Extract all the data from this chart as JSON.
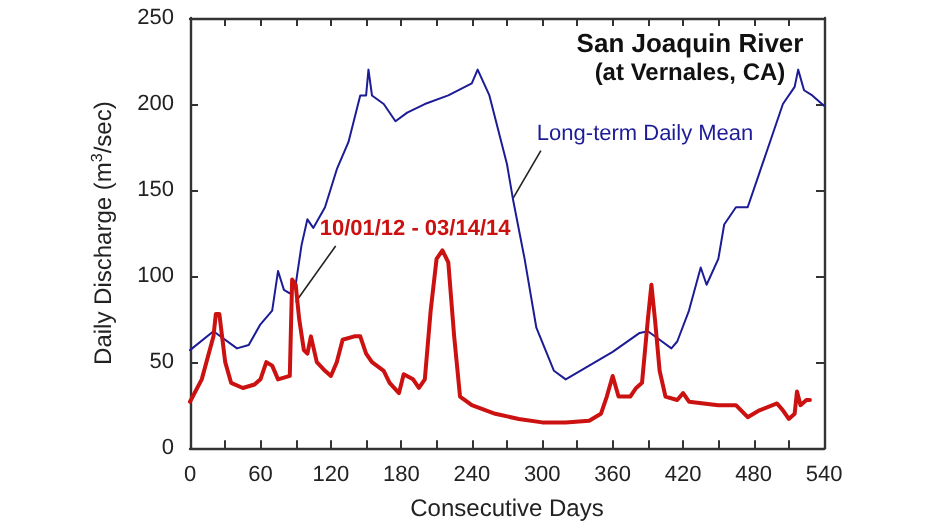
{
  "chart_data": {
    "type": "line",
    "title": "San Joaquin River",
    "subtitle": "(at Vernales, CA)",
    "xlabel": "Consecutive Days",
    "ylabel": "Daily Discharge (m$^{3}$/sec)",
    "xlim": [
      0,
      540
    ],
    "ylim": [
      0,
      250
    ],
    "xticks": [
      0,
      {
        "value": 30,
        "label": null
      },
      60,
      {
        "value": 90,
        "label": null
      },
      120,
      {
        "value": 150,
        "label": null
      },
      180,
      {
        "value": 210,
        "label": null
      },
      240,
      {
        "value": 270,
        "label": null
      },
      300,
      {
        "value": 330,
        "label": null
      },
      360,
      {
        "value": 390,
        "label": null
      },
      420,
      {
        "value": 450,
        "label": null
      },
      480,
      {
        "value": 510,
        "label": null
      },
      540
    ],
    "yticks": [
      0,
      50,
      100,
      150,
      200,
      250
    ],
    "grid": false,
    "marker": "none",
    "line_style": "solid",
    "series": [
      {
        "color": "#1c1c96",
        "x": [
          0,
          20,
          40,
          50,
          60,
          70,
          75,
          80,
          85,
          90,
          95,
          100,
          105,
          115,
          125,
          135,
          145,
          150,
          152,
          155,
          165,
          175,
          185,
          200,
          220,
          240,
          245,
          255,
          270,
          275,
          285,
          295,
          310,
          320,
          340,
          360,
          383,
          390,
          400,
          410,
          415,
          425,
          435,
          440,
          450,
          455,
          465,
          475,
          485,
          495,
          505,
          515,
          518,
          523,
          530,
          540
        ],
        "values": [
          57,
          68,
          58,
          60,
          72,
          80,
          103,
          92,
          90,
          95,
          118,
          133,
          128,
          140,
          162,
          178,
          205,
          205,
          220,
          205,
          200,
          190,
          195,
          200,
          205,
          212,
          220,
          205,
          165,
          145,
          110,
          70,
          45,
          40,
          48,
          56,
          67,
          68,
          63,
          58,
          62,
          80,
          105,
          95,
          110,
          130,
          140,
          140,
          160,
          180,
          200,
          210,
          220,
          208,
          205,
          199
        ]
      },
      {
        "color": "#cc1111",
        "x": [
          0,
          10,
          20,
          22,
          25,
          30,
          35,
          45,
          55,
          60,
          65,
          70,
          75,
          85,
          87,
          90,
          93,
          97,
          100,
          103,
          108,
          115,
          120,
          125,
          130,
          140,
          145,
          150,
          155,
          165,
          170,
          178,
          182,
          190,
          195,
          200,
          205,
          210,
          215,
          220,
          225,
          230,
          240,
          260,
          280,
          300,
          320,
          340,
          350,
          355,
          360,
          365,
          375,
          380,
          385,
          390,
          393,
          396,
          400,
          405,
          415,
          420,
          425,
          450,
          465,
          475,
          485,
          500,
          505,
          510,
          515,
          517,
          520,
          525,
          528
        ],
        "values": [
          27,
          40,
          65,
          78,
          78,
          50,
          38,
          35,
          37,
          40,
          50,
          48,
          40,
          42,
          98,
          95,
          75,
          57,
          55,
          65,
          50,
          45,
          42,
          50,
          63,
          65,
          65,
          55,
          50,
          45,
          38,
          32,
          43,
          40,
          35,
          40,
          80,
          110,
          115,
          108,
          65,
          30,
          25,
          20,
          17,
          15,
          15,
          16,
          20,
          30,
          42,
          30,
          30,
          35,
          38,
          75,
          95,
          75,
          45,
          30,
          28,
          32,
          27,
          25,
          25,
          18,
          22,
          26,
          22,
          17,
          20,
          33,
          25,
          28,
          28
        ]
      }
    ],
    "annotations": [
      {
        "text": "Long-term Daily Mean",
        "x": 275,
        "y": 145
      },
      {
        "text": "10/01/12 - 03/14/14",
        "x": 90,
        "y": 85
      }
    ]
  }
}
